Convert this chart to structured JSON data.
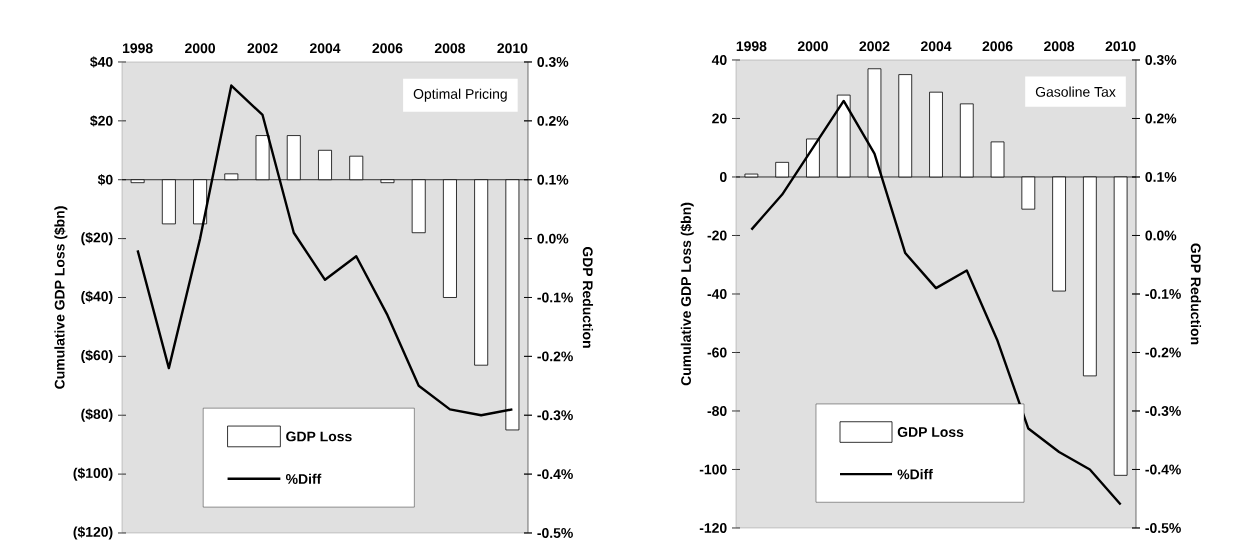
{
  "chart_data": [
    {
      "type": "bar",
      "categories": [
        "1998",
        null,
        "2000",
        null,
        "2002",
        null,
        "2004",
        null,
        "2006",
        null,
        "2008",
        null,
        "2010"
      ],
      "series": [
        {
          "name": "GDP Loss",
          "color": "#ffffff",
          "values": [
            -1,
            -15,
            -15,
            2,
            15,
            15,
            10,
            8,
            -1,
            -18,
            -40,
            -63,
            -85
          ]
        },
        {
          "name": "%Diff",
          "type": "line",
          "axis": "y2",
          "color": "#000000",
          "values": [
            -0.02,
            -0.22,
            0.0,
            0.26,
            0.21,
            0.01,
            -0.07,
            -0.03,
            -0.13,
            -0.25,
            -0.29,
            -0.3,
            -0.29
          ]
        }
      ],
      "ylim": [
        -120,
        40
      ],
      "yticks": [
        {
          "value": -120,
          "label": "($120)"
        },
        {
          "value": -100,
          "label": "($100)"
        },
        {
          "value": -80,
          "label": "($80)"
        },
        {
          "value": -60,
          "label": "($60)"
        },
        {
          "value": -40,
          "label": "($40)"
        },
        {
          "value": -20,
          "label": "($20)"
        },
        {
          "value": 0,
          "label": "$0"
        },
        {
          "value": 20,
          "label": "$20"
        },
        {
          "value": 40,
          "label": "$40"
        }
      ],
      "y2lim": [
        -0.5,
        0.3
      ],
      "y2ticks": [
        {
          "value": -0.5,
          "label": "-0.5%"
        },
        {
          "value": -0.4,
          "label": "-0.4%"
        },
        {
          "value": -0.3,
          "label": "-0.3%"
        },
        {
          "value": -0.2,
          "label": "-0.2%"
        },
        {
          "value": -0.1,
          "label": "-0.1%"
        },
        {
          "value": 0.0,
          "label": "0.0%"
        },
        {
          "value": 0.1,
          "label": "0.1%"
        },
        {
          "value": 0.2,
          "label": "0.2%"
        },
        {
          "value": 0.3,
          "label": "0.3%"
        }
      ],
      "ylabel": "Cumulative GDP Loss ($bn)",
      "y2label": "GDP Reduction",
      "annotations": [
        "Optimal Pricing"
      ],
      "legend": "bottom"
    },
    {
      "type": "bar",
      "categories": [
        "1998",
        null,
        "2000",
        null,
        "2002",
        null,
        "2004",
        null,
        "2006",
        null,
        "2008",
        null,
        "2010"
      ],
      "series": [
        {
          "name": "GDP Loss",
          "color": "#ffffff",
          "values": [
            1,
            5,
            13,
            28,
            37,
            35,
            29,
            25,
            12,
            -11,
            -39,
            -68,
            -102
          ]
        },
        {
          "name": "%Diff",
          "type": "line",
          "axis": "y2",
          "color": "#000000",
          "values": [
            0.01,
            0.07,
            0.15,
            0.23,
            0.14,
            -0.03,
            -0.09,
            -0.06,
            -0.18,
            -0.33,
            -0.37,
            -0.4,
            -0.46
          ]
        }
      ],
      "ylim": [
        -120,
        40
      ],
      "yticks": [
        -120,
        -100,
        -80,
        -60,
        -40,
        -20,
        0,
        20,
        40
      ],
      "y2lim": [
        -0.5,
        0.3
      ],
      "y2ticks": [
        {
          "value": -0.5,
          "label": "-0.5%"
        },
        {
          "value": -0.4,
          "label": "-0.4%"
        },
        {
          "value": -0.3,
          "label": "-0.3%"
        },
        {
          "value": -0.2,
          "label": "-0.2%"
        },
        {
          "value": -0.1,
          "label": "-0.1%"
        },
        {
          "value": 0.0,
          "label": "0.0%"
        },
        {
          "value": 0.1,
          "label": "0.1%"
        },
        {
          "value": 0.2,
          "label": "0.2%"
        },
        {
          "value": 0.3,
          "label": "0.3%"
        }
      ],
      "ylabel": "Cumulative GDP Loss ($bn)",
      "y2label": "GDP Reduction",
      "annotations": [
        "Gasoline Tax"
      ],
      "legend": "bottom"
    }
  ]
}
